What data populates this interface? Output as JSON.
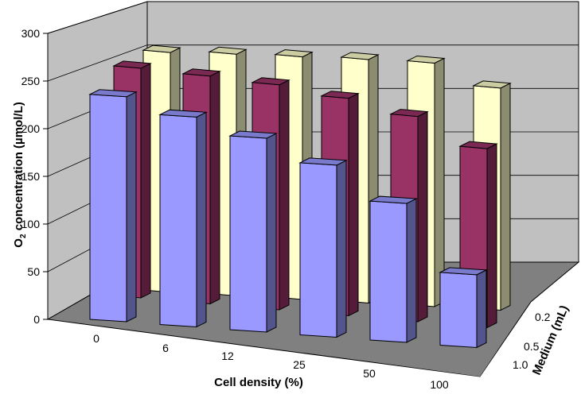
{
  "chart_data": {
    "type": "bar",
    "projection": "3d",
    "categories": [
      "0",
      "6",
      "12",
      "25",
      "50",
      "100"
    ],
    "series": [
      {
        "name": "1.0",
        "color": "#9999ff",
        "values": [
          238,
          222,
          205,
          182,
          147,
          77
        ]
      },
      {
        "name": "0.5",
        "color": "#993366",
        "values": [
          245,
          243,
          240,
          232,
          219,
          191
        ]
      },
      {
        "name": "0.2",
        "color": "#ffffcc",
        "values": [
          258,
          260,
          261,
          262,
          262,
          239
        ]
      }
    ],
    "xlabel": "Cell density (%)",
    "ylabel_main": "O",
    "ylabel_sub": "2",
    "ylabel_rest": " concentration (µmol/L)",
    "zlabel": "Medium (mL)",
    "ylim": [
      0,
      300
    ],
    "yticks": [
      "0",
      "50",
      "100",
      "150",
      "200",
      "250",
      "300"
    ],
    "colors": {
      "wall": "#c0c0c0",
      "floor": "#808080"
    }
  }
}
